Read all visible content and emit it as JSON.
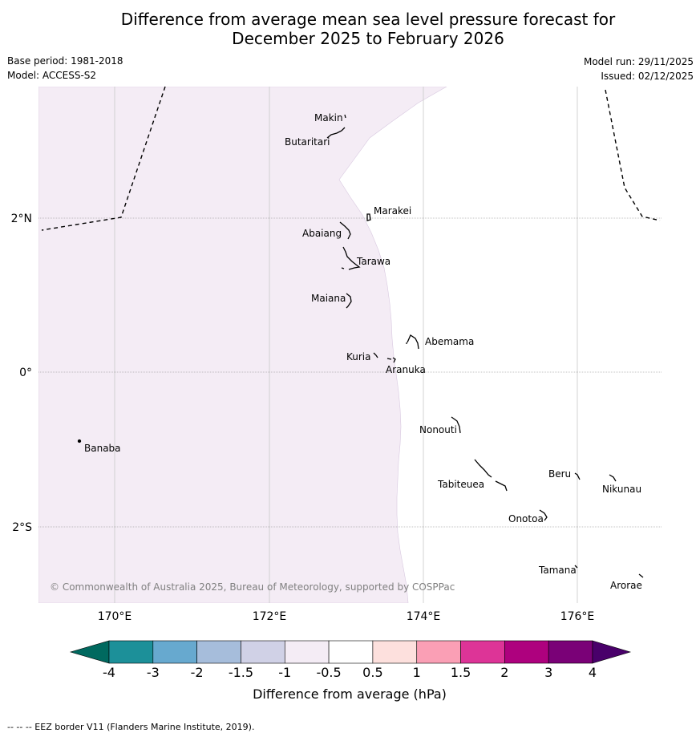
{
  "title": {
    "line1": "Difference from average mean sea level pressure forecast for",
    "line2": "December 2025 to February 2026"
  },
  "meta": {
    "base_period": "Base period: 1981-2018",
    "model": "Model: ACCESS-S2",
    "model_run": "Model run: 29/11/2025",
    "issued": "Issued: 02/12/2025"
  },
  "map": {
    "lat_labels": [
      "2°N",
      "0°",
      "2°S"
    ],
    "lon_labels": [
      "170°E",
      "172°E",
      "174°E",
      "176°E"
    ],
    "places": [
      "Makin",
      "Butaritari",
      "Marakei",
      "Abaiang",
      "Tarawa",
      "Maiana",
      "Abemama",
      "Kuria",
      "Aranuka",
      "Nonouti",
      "Banaba",
      "Beru",
      "Nikunau",
      "Tabiteuea",
      "Onotoa",
      "Tamana",
      "Arorae"
    ],
    "copyright": "© Commonwealth of Australia 2025, Bureau of Meteorology, supported by COSPPac",
    "shaded_color": "#f4ecf5"
  },
  "colorbar": {
    "ticks": [
      "-4",
      "-3",
      "-2",
      "-1.5",
      "-1",
      "-0.5",
      "0.5",
      "1",
      "1.5",
      "2",
      "3",
      "4"
    ],
    "colors": [
      "#1c9099",
      "#67a9cf",
      "#a6bddb",
      "#d0d1e6",
      "#f4ecf5",
      "#ffffff",
      "#fde0dd",
      "#fa9fb5",
      "#dd3497",
      "#ae017e",
      "#7a0177"
    ],
    "low_extend": "#00695f",
    "high_extend": "#49006a",
    "label": "Difference from average (hPa)"
  },
  "footer": {
    "text": "--  --  -- EEZ border V11 (Flanders Marine Institute, 2019)."
  }
}
